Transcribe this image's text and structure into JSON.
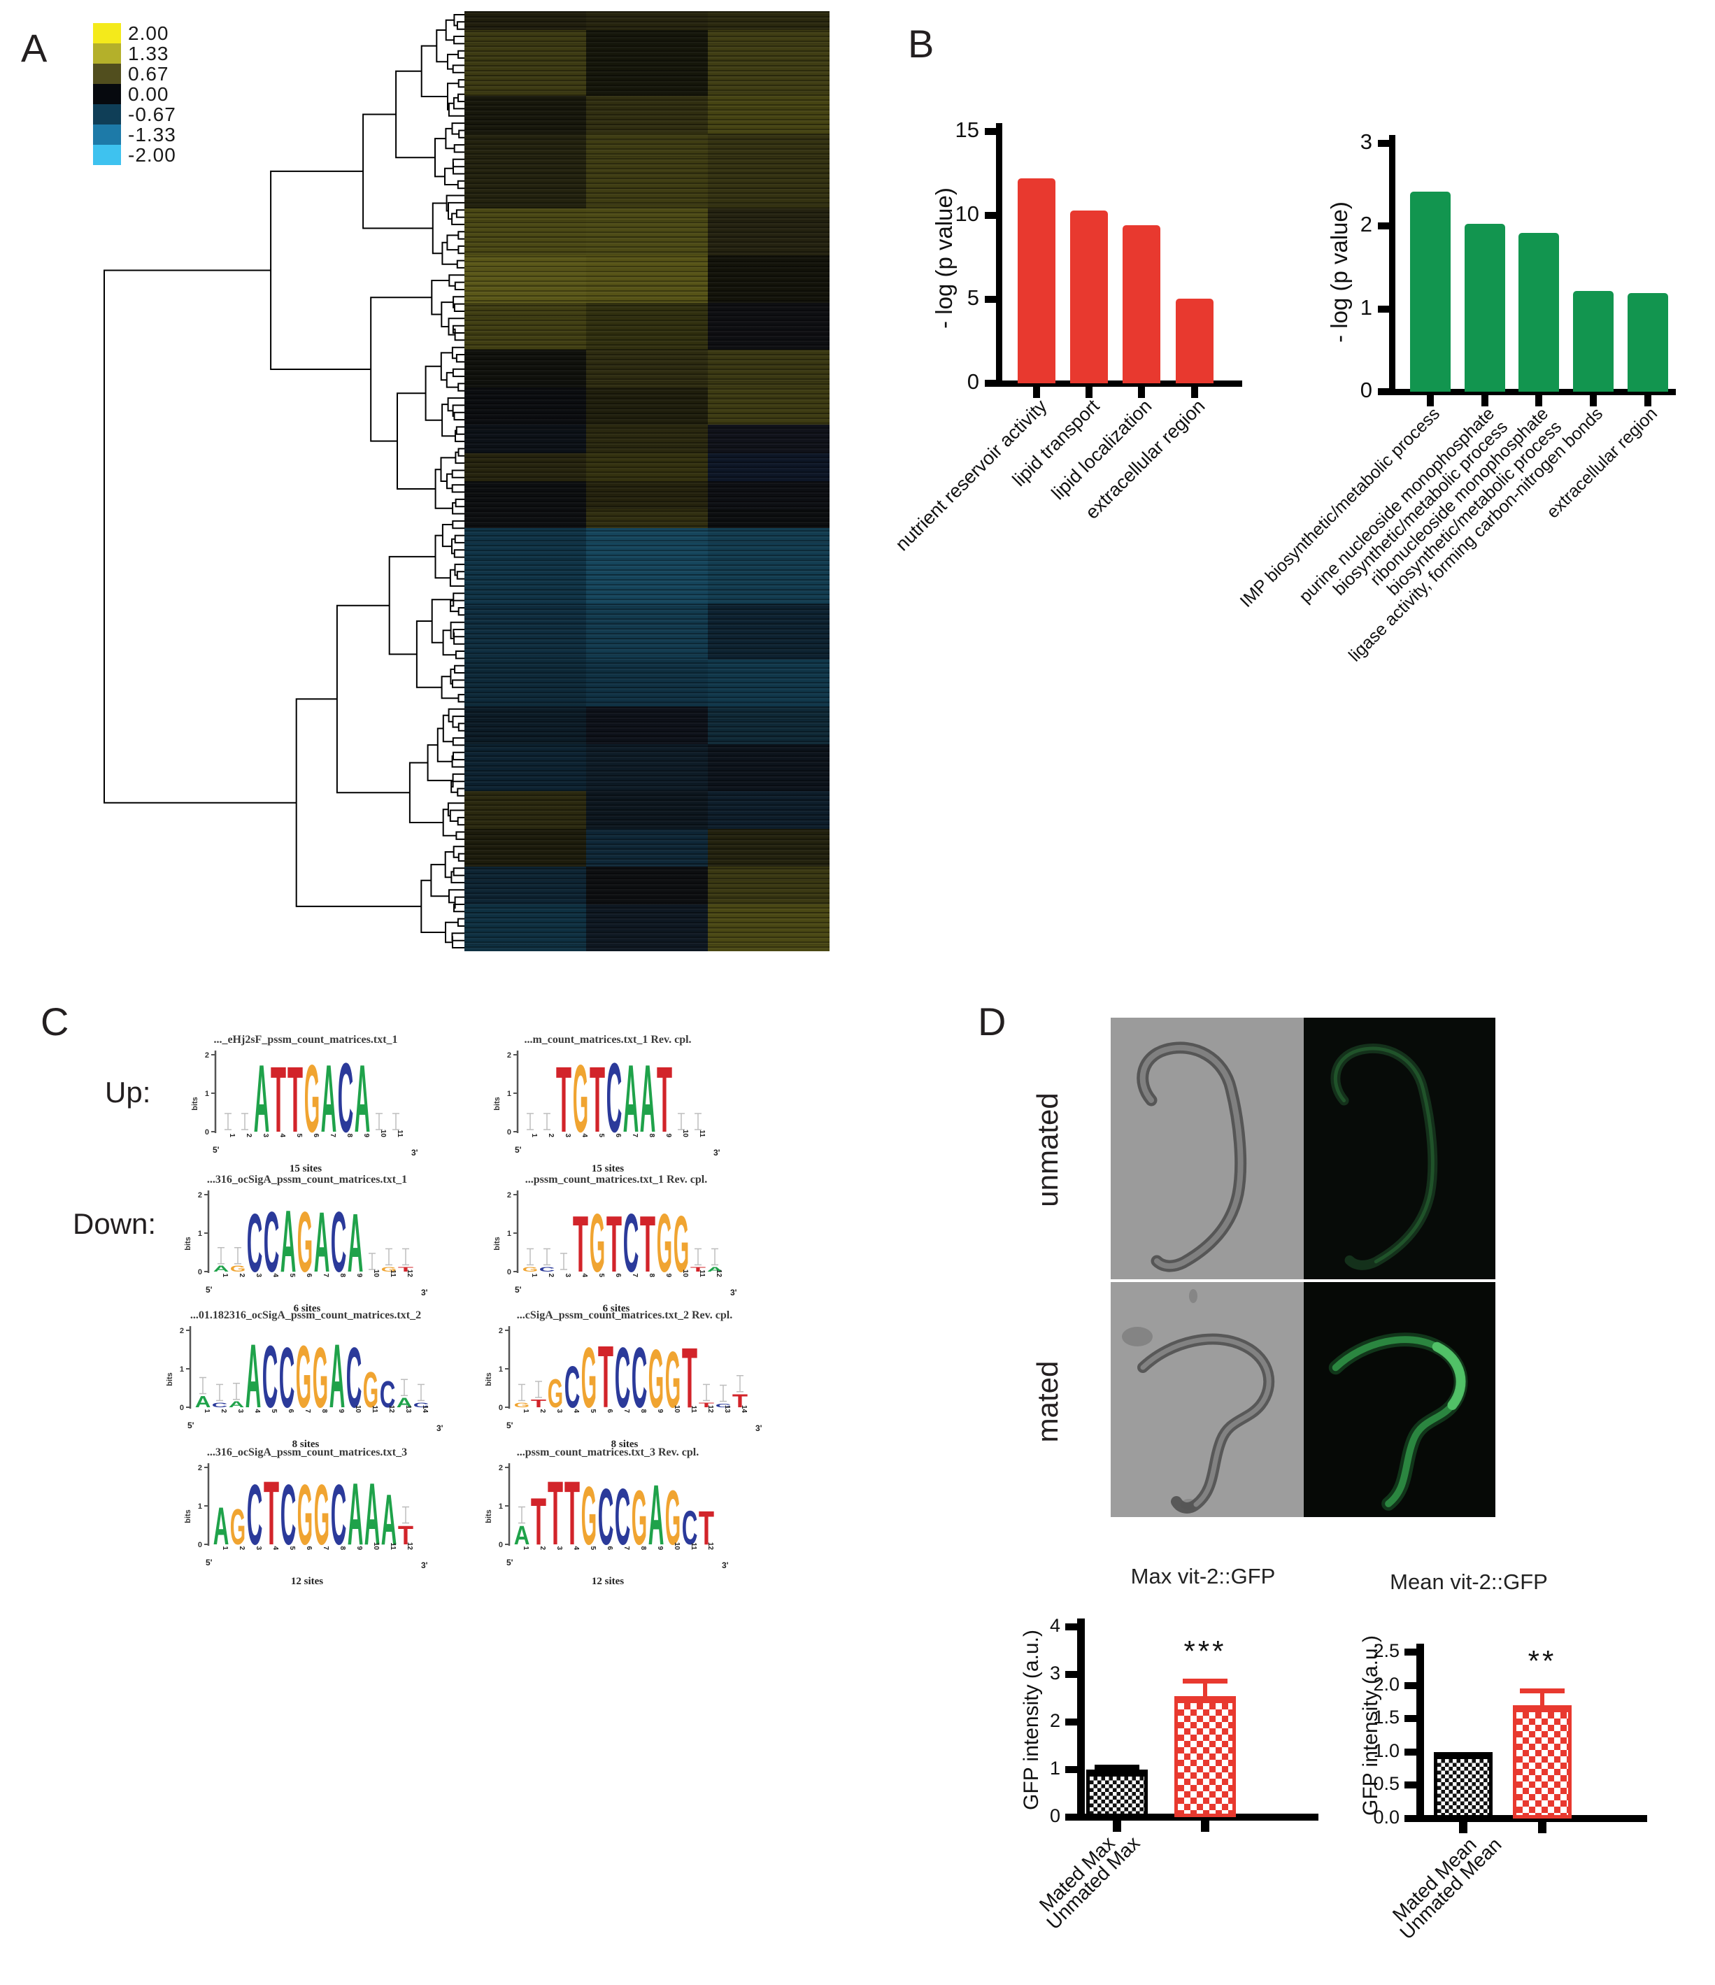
{
  "panels": {
    "a": "A",
    "b": "B",
    "c": "C",
    "d": "D"
  },
  "heatmap": {
    "legend": [
      {
        "value": "2.00",
        "color": "#f4ea1b"
      },
      {
        "value": "1.33",
        "color": "#b4b02a"
      },
      {
        "value": "0.67",
        "color": "#514e1e"
      },
      {
        "value": "0.00",
        "color": "#06090e"
      },
      {
        "value": "-0.67",
        "color": "#0f3e57"
      },
      {
        "value": "-1.33",
        "color": "#1d7aa8"
      },
      {
        "value": "-2.00",
        "color": "#3ec2ef"
      }
    ],
    "columns": 3,
    "bands": [
      {
        "pct": 2,
        "cols": [
          "#201e0d",
          "#26240e",
          "#2b290f"
        ]
      },
      {
        "pct": 7,
        "cols": [
          "#3c3a12",
          "#15160a",
          "#3f3d13"
        ]
      },
      {
        "pct": 4,
        "cols": [
          "#17170b",
          "#302e10",
          "#454312"
        ]
      },
      {
        "pct": 8,
        "cols": [
          "#23220e",
          "#3e3c12",
          "#343211"
        ]
      },
      {
        "pct": 5,
        "cols": [
          "#4a4814",
          "#4c4a15",
          "#242210"
        ]
      },
      {
        "pct": 5,
        "cols": [
          "#5a5718",
          "#565316",
          "#13130a"
        ]
      },
      {
        "pct": 5,
        "cols": [
          "#403e12",
          "#31300f",
          "#0e0f12"
        ]
      },
      {
        "pct": 4,
        "cols": [
          "#10110c",
          "#2d2b10",
          "#3a3812"
        ]
      },
      {
        "pct": 4,
        "cols": [
          "#0b0d10",
          "#1f1e0c",
          "#3d3b12"
        ]
      },
      {
        "pct": 3,
        "cols": [
          "#0c1117",
          "#2a280f",
          "#10121a"
        ]
      },
      {
        "pct": 3,
        "cols": [
          "#26240e",
          "#33310f",
          "#0d1626"
        ]
      },
      {
        "pct": 3,
        "cols": [
          "#0c0e10",
          "#24220d",
          "#0d0f13"
        ]
      },
      {
        "pct": 2,
        "cols": [
          "#0d0f11",
          "#302e10",
          "#0c0e10"
        ]
      },
      {
        "pct": 8,
        "cols": [
          "#0f3346",
          "#15455c",
          "#123c50"
        ]
      },
      {
        "pct": 6,
        "cols": [
          "#0e2d3f",
          "#123a4e",
          "#0d2231"
        ]
      },
      {
        "pct": 5,
        "cols": [
          "#0d2939",
          "#0f3143",
          "#10374a"
        ]
      },
      {
        "pct": 4,
        "cols": [
          "#0b1b26",
          "#0d1119",
          "#0e2836"
        ]
      },
      {
        "pct": 5,
        "cols": [
          "#0c2231",
          "#0d1b26",
          "#0c131b"
        ]
      },
      {
        "pct": 4,
        "cols": [
          "#2a280f",
          "#0c161e",
          "#0d1d2a"
        ]
      },
      {
        "pct": 4,
        "cols": [
          "#1d1c0c",
          "#0e2737",
          "#23220e"
        ]
      },
      {
        "pct": 4,
        "cols": [
          "#0d2433",
          "#0d0f11",
          "#3a3812"
        ]
      },
      {
        "pct": 5,
        "cols": [
          "#0e3041",
          "#0e1822",
          "#4a4814"
        ]
      }
    ]
  },
  "chart_data": [
    {
      "type": "bar",
      "title": "",
      "ylabel": "- log (p value)",
      "color": "#e8392f",
      "ymax": 15,
      "yticks": [
        0,
        5,
        10,
        15
      ],
      "categories": [
        "nutrient reservoir activity",
        "lipid transport",
        "lipid localization",
        "extracellular region"
      ],
      "values": [
        12.2,
        10.3,
        9.4,
        5.05
      ],
      "bars": [
        {
          "label": "nutrient reservoir activity",
          "value": 12.2
        },
        {
          "label": "lipid transport",
          "value": 10.3
        },
        {
          "label": "lipid localization",
          "value": 9.4
        },
        {
          "label": "extracellular region",
          "value": 5.05
        }
      ]
    },
    {
      "type": "bar",
      "title": "",
      "ylabel": "- log (p value)",
      "color": "#12954f",
      "ymax": 3,
      "yticks": [
        0,
        1,
        2,
        3
      ],
      "categories": [
        "IMP biosynthetic/metabolic process",
        "purine nucleoside monophosphate biosynthetic/metabolic process",
        "ribonucleoside monophosphate biosynthetic/metabolic process",
        "ligase activity, forming carbon-nitrogen bonds",
        "extracellular region"
      ],
      "values": [
        2.42,
        2.03,
        1.92,
        1.22,
        1.19
      ],
      "bars": [
        {
          "label": "IMP biosynthetic/metabolic process",
          "value": 2.42
        },
        {
          "label": "purine nucleoside monophosphate\nbiosynthetic/metabolic process",
          "value": 2.03
        },
        {
          "label": "ribonucleoside monophosphate\nbiosynthetic/metabolic process",
          "value": 1.92
        },
        {
          "label": "ligase activity, forming carbon-nitrogen bonds",
          "value": 1.22
        },
        {
          "label": "extracellular region",
          "value": 1.19
        }
      ]
    },
    {
      "type": "bar",
      "title": "Max vit-2::GFP",
      "ylabel": "GFP intensity (a.u.)",
      "ymax": 4,
      "yticks": [
        "0",
        "1",
        "2",
        "3",
        "4"
      ],
      "categories": [
        "Unmated Max",
        "Mated Max"
      ],
      "values": [
        1.0,
        2.55
      ],
      "bars": [
        {
          "label": "Unmated Max",
          "value": 1.0,
          "err": 0.06,
          "style": "black",
          "sig": ""
        },
        {
          "label": "Mated Max",
          "value": 2.55,
          "err": 0.32,
          "style": "red",
          "sig": "***"
        }
      ]
    },
    {
      "type": "bar",
      "title": "Mean vit-2::GFP",
      "ylabel": "GFP intensity (a.u.)",
      "ymax": 2.5,
      "yticks": [
        "0.0",
        "0.5",
        "1.0",
        "1.5",
        "2.0",
        "2.5"
      ],
      "categories": [
        "Unmated Mean",
        "Mated Mean"
      ],
      "values": [
        1.0,
        1.7
      ],
      "bars": [
        {
          "label": "Unmated Mean",
          "value": 1.0,
          "err": 0,
          "style": "black",
          "sig": ""
        },
        {
          "label": "Mated Mean",
          "value": 1.7,
          "err": 0.22,
          "style": "red",
          "sig": "**"
        }
      ]
    }
  ],
  "motifs": {
    "up_label": "Up:",
    "down_label": "Down:",
    "bits_label": "bits",
    "five_prime": "5'",
    "three_prime": "3'",
    "letter_colors": {
      "A": "#1fa24a",
      "C": "#2b3a9a",
      "G": "#f0a431",
      "T": "#d2242a"
    },
    "logos": [
      {
        "title": "..._eHj2sF_pssm_count_matrices.txt_1",
        "sites": "15 sites",
        "n": 11,
        "stack": {
          "3": [
            {
              "ch": "A",
              "h": 1.8
            }
          ],
          "4": [
            {
              "ch": "T",
              "h": 1.75
            }
          ],
          "5": [
            {
              "ch": "T",
              "h": 1.75
            }
          ],
          "6": [
            {
              "ch": "G",
              "h": 1.8
            }
          ],
          "7": [
            {
              "ch": "A",
              "h": 1.8
            }
          ],
          "8": [
            {
              "ch": "C",
              "h": 1.85
            }
          ],
          "9": [
            {
              "ch": "A",
              "h": 1.8
            }
          ]
        }
      },
      {
        "title": "...m_count_matrices.txt_1  Rev. cpl.",
        "sites": "15 sites",
        "n": 11,
        "stack": {
          "3": [
            {
              "ch": "T",
              "h": 1.75
            }
          ],
          "4": [
            {
              "ch": "G",
              "h": 1.8
            }
          ],
          "5": [
            {
              "ch": "T",
              "h": 1.75
            }
          ],
          "6": [
            {
              "ch": "C",
              "h": 1.85
            }
          ],
          "7": [
            {
              "ch": "A",
              "h": 1.8
            }
          ],
          "8": [
            {
              "ch": "A",
              "h": 1.8
            }
          ],
          "9": [
            {
              "ch": "T",
              "h": 1.75
            }
          ]
        }
      },
      {
        "title": "...316_ocSigA_pssm_count_matrices.txt_1",
        "sites": "6 sites",
        "n": 12,
        "stack": {
          "1": [
            {
              "ch": "A",
              "h": 0.15
            }
          ],
          "2": [
            {
              "ch": "G",
              "h": 0.15
            }
          ],
          "3": [
            {
              "ch": "C",
              "h": 1.55
            }
          ],
          "4": [
            {
              "ch": "C",
              "h": 1.6
            }
          ],
          "5": [
            {
              "ch": "A",
              "h": 1.65
            }
          ],
          "6": [
            {
              "ch": "G",
              "h": 1.6
            }
          ],
          "7": [
            {
              "ch": "A",
              "h": 1.6
            }
          ],
          "8": [
            {
              "ch": "C",
              "h": 1.6
            }
          ],
          "9": [
            {
              "ch": "A",
              "h": 1.55
            }
          ],
          "11": [
            {
              "ch": "G",
              "h": 0.12
            }
          ],
          "12": [
            {
              "ch": "T",
              "h": 0.12
            }
          ]
        }
      },
      {
        "title": "...pssm_count_matrices.txt_1  Rev. cpl.",
        "sites": "6 sites",
        "n": 12,
        "stack": {
          "1": [
            {
              "ch": "G",
              "h": 0.12
            }
          ],
          "2": [
            {
              "ch": "C",
              "h": 0.12
            }
          ],
          "4": [
            {
              "ch": "T",
              "h": 1.5
            }
          ],
          "5": [
            {
              "ch": "G",
              "h": 1.55
            }
          ],
          "6": [
            {
              "ch": "T",
              "h": 1.5
            }
          ],
          "7": [
            {
              "ch": "C",
              "h": 1.55
            }
          ],
          "8": [
            {
              "ch": "T",
              "h": 1.5
            }
          ],
          "9": [
            {
              "ch": "G",
              "h": 1.55
            }
          ],
          "10": [
            {
              "ch": "G",
              "h": 1.5
            }
          ],
          "11": [
            {
              "ch": "T",
              "h": 0.12
            }
          ],
          "12": [
            {
              "ch": "A",
              "h": 0.12
            }
          ]
        }
      },
      {
        "title": "...01.182316_ocSigA_pssm_count_matrices.txt_2",
        "sites": "8 sites",
        "n": 14,
        "stack": {
          "1": [
            {
              "ch": "A",
              "h": 0.3
            }
          ],
          "2": [
            {
              "ch": "C",
              "h": 0.12
            }
          ],
          "3": [
            {
              "ch": "A",
              "h": 0.15
            }
          ],
          "4": [
            {
              "ch": "A",
              "h": 1.7
            }
          ],
          "5": [
            {
              "ch": "C",
              "h": 1.65
            }
          ],
          "6": [
            {
              "ch": "C",
              "h": 1.6
            }
          ],
          "7": [
            {
              "ch": "G",
              "h": 1.65
            }
          ],
          "8": [
            {
              "ch": "G",
              "h": 1.6
            }
          ],
          "9": [
            {
              "ch": "A",
              "h": 1.7
            }
          ],
          "10": [
            {
              "ch": "C",
              "h": 1.6
            }
          ],
          "11": [
            {
              "ch": "G",
              "h": 0.95
            }
          ],
          "12": [
            {
              "ch": "C",
              "h": 0.7
            }
          ],
          "13": [
            {
              "ch": "A",
              "h": 0.25
            }
          ],
          "14": [
            {
              "ch": "C",
              "h": 0.12
            }
          ]
        }
      },
      {
        "title": "...cSigA_pssm_count_matrices.txt_2  Rev. cpl.",
        "sites": "8 sites",
        "n": 14,
        "stack": {
          "1": [
            {
              "ch": "G",
              "h": 0.12
            }
          ],
          "2": [
            {
              "ch": "T",
              "h": 0.2
            }
          ],
          "3": [
            {
              "ch": "G",
              "h": 0.75
            }
          ],
          "4": [
            {
              "ch": "C",
              "h": 1.1
            }
          ],
          "5": [
            {
              "ch": "G",
              "h": 1.6
            }
          ],
          "6": [
            {
              "ch": "T",
              "h": 1.65
            }
          ],
          "7": [
            {
              "ch": "C",
              "h": 1.6
            }
          ],
          "8": [
            {
              "ch": "C",
              "h": 1.6
            }
          ],
          "9": [
            {
              "ch": "G",
              "h": 1.55
            }
          ],
          "10": [
            {
              "ch": "G",
              "h": 1.5
            }
          ],
          "11": [
            {
              "ch": "T",
              "h": 1.6
            }
          ],
          "12": [
            {
              "ch": "T",
              "h": 0.12
            }
          ],
          "13": [
            {
              "ch": "C",
              "h": 0.1
            }
          ],
          "14": [
            {
              "ch": "T",
              "h": 0.35
            }
          ]
        }
      },
      {
        "title": "...316_ocSigA_pssm_count_matrices.txt_3",
        "sites": "12 sites",
        "n": 12,
        "stack": {
          "1": [
            {
              "ch": "A",
              "h": 1.0
            }
          ],
          "2": [
            {
              "ch": "G",
              "h": 0.95
            }
          ],
          "3": [
            {
              "ch": "C",
              "h": 1.6
            }
          ],
          "4": [
            {
              "ch": "T",
              "h": 1.7
            }
          ],
          "5": [
            {
              "ch": "C",
              "h": 1.6
            }
          ],
          "6": [
            {
              "ch": "G",
              "h": 1.6
            }
          ],
          "7": [
            {
              "ch": "G",
              "h": 1.6
            }
          ],
          "8": [
            {
              "ch": "C",
              "h": 1.6
            }
          ],
          "9": [
            {
              "ch": "A",
              "h": 1.65
            }
          ],
          "10": [
            {
              "ch": "A",
              "h": 1.65
            }
          ],
          "11": [
            {
              "ch": "A",
              "h": 1.35
            }
          ],
          "12": [
            {
              "ch": "T",
              "h": 0.5
            }
          ]
        }
      },
      {
        "title": "...pssm_count_matrices.txt_3  Rev. cpl.",
        "sites": "12 sites",
        "n": 12,
        "stack": {
          "1": [
            {
              "ch": "A",
              "h": 0.5
            }
          ],
          "2": [
            {
              "ch": "T",
              "h": 1.25
            }
          ],
          "3": [
            {
              "ch": "T",
              "h": 1.7
            }
          ],
          "4": [
            {
              "ch": "T",
              "h": 1.7
            }
          ],
          "5": [
            {
              "ch": "G",
              "h": 1.55
            }
          ],
          "6": [
            {
              "ch": "C",
              "h": 1.5
            }
          ],
          "7": [
            {
              "ch": "C",
              "h": 1.5
            }
          ],
          "8": [
            {
              "ch": "G",
              "h": 1.45
            }
          ],
          "9": [
            {
              "ch": "A",
              "h": 1.6
            }
          ],
          "10": [
            {
              "ch": "G",
              "h": 1.45
            }
          ],
          "11": [
            {
              "ch": "C",
              "h": 0.9
            }
          ],
          "12": [
            {
              "ch": "T",
              "h": 0.9
            }
          ]
        }
      }
    ]
  },
  "micrographs": {
    "rows": [
      {
        "label": "unmated",
        "gfp": "faint"
      },
      {
        "label": "mated",
        "gfp": "bright"
      }
    ]
  }
}
